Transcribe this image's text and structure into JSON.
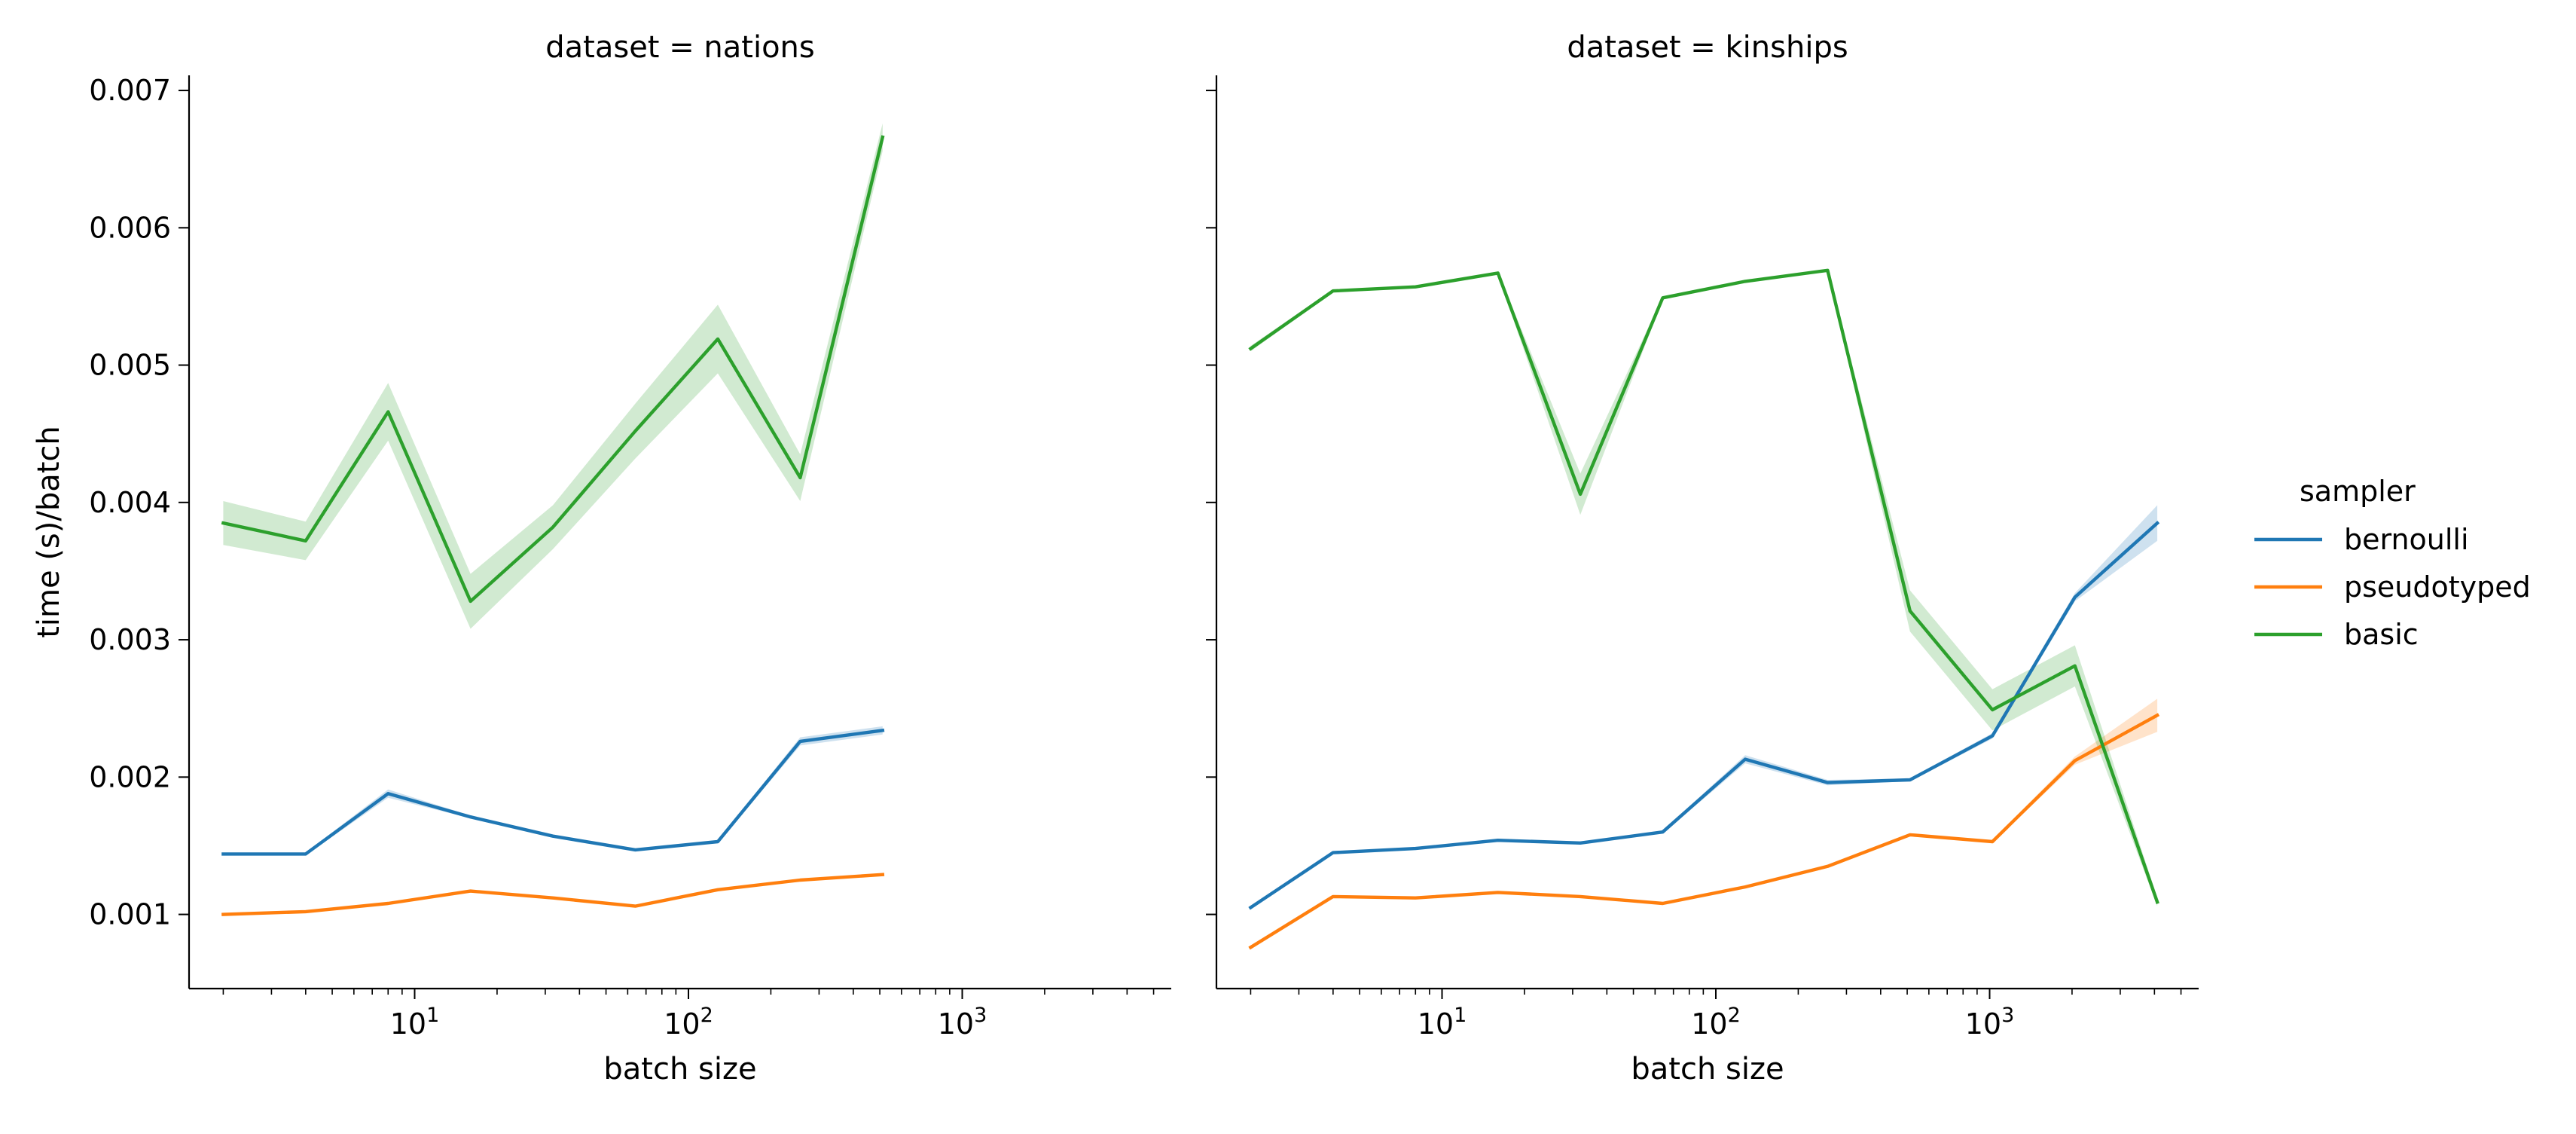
{
  "chart_data": {
    "type": "line",
    "xlabel": "batch size",
    "ylabel": "time (s)/batch",
    "xscale": "log",
    "xlim": [
      1.5,
      5800
    ],
    "ylim": [
      0.00046,
      0.00711
    ],
    "yticks": [
      0.001,
      0.002,
      0.003,
      0.004,
      0.005,
      0.006,
      0.007
    ],
    "ytick_labels": [
      "0.001",
      "0.002",
      "0.003",
      "0.004",
      "0.005",
      "0.006",
      "0.007"
    ],
    "xticks": [
      10,
      100,
      1000
    ],
    "xtick_labels": [
      {
        "base": "10",
        "exp": "1"
      },
      {
        "base": "10",
        "exp": "2"
      },
      {
        "base": "10",
        "exp": "3"
      }
    ],
    "shared_y": true,
    "grid": false,
    "legend": {
      "title": "sampler",
      "placement": "right-outside",
      "entries": [
        {
          "name": "bernoulli",
          "color": "#1f77b4"
        },
        {
          "name": "pseudotyped",
          "color": "#ff7f0e"
        },
        {
          "name": "basic",
          "color": "#2ca02c"
        }
      ]
    },
    "panels": [
      {
        "title": "dataset = nations",
        "series": [
          {
            "name": "bernoulli",
            "color": "#1f77b4",
            "x": [
              2,
              4,
              8,
              16,
              32,
              64,
              128,
              256,
              512
            ],
            "y": [
              0.00144,
              0.00144,
              0.00188,
              0.00171,
              0.00157,
              0.00147,
              0.00153,
              0.00226,
              0.00234
            ],
            "band": [
              1e-05,
              1e-05,
              3e-05,
              1e-05,
              1e-05,
              1e-05,
              1e-05,
              3e-05,
              3e-05
            ]
          },
          {
            "name": "pseudotyped",
            "color": "#ff7f0e",
            "x": [
              2,
              4,
              8,
              16,
              32,
              64,
              128,
              256,
              512
            ],
            "y": [
              0.001,
              0.00102,
              0.00108,
              0.00117,
              0.00112,
              0.00106,
              0.00118,
              0.00125,
              0.00129
            ],
            "band": [
              1e-05,
              1e-05,
              1e-05,
              1e-05,
              1e-05,
              1e-05,
              1e-05,
              1e-05,
              1e-05
            ]
          },
          {
            "name": "basic",
            "color": "#2ca02c",
            "x": [
              2,
              4,
              8,
              16,
              32,
              64,
              128,
              256,
              512
            ],
            "y": [
              0.00385,
              0.00372,
              0.00466,
              0.00328,
              0.00382,
              0.00452,
              0.00519,
              0.00418,
              0.00666
            ],
            "band": [
              0.00016,
              0.00014,
              0.00021,
              0.0002,
              0.00016,
              0.0002,
              0.00025,
              0.00017,
              0.0001
            ]
          }
        ]
      },
      {
        "title": "dataset = kinships",
        "series": [
          {
            "name": "bernoulli",
            "color": "#1f77b4",
            "x": [
              2,
              4,
              8,
              16,
              32,
              64,
              128,
              256,
              512,
              1024,
              2048,
              4096
            ],
            "y": [
              0.00105,
              0.00145,
              0.00148,
              0.00154,
              0.00152,
              0.0016,
              0.00213,
              0.00196,
              0.00198,
              0.0023,
              0.00331,
              0.00385
            ],
            "band": [
              1e-05,
              1e-05,
              1e-05,
              1e-05,
              1e-05,
              1e-05,
              3e-05,
              2e-05,
              1e-05,
              2e-05,
              3e-05,
              0.00013
            ]
          },
          {
            "name": "pseudotyped",
            "color": "#ff7f0e",
            "x": [
              2,
              4,
              8,
              16,
              32,
              64,
              128,
              256,
              512,
              1024,
              2048,
              4096
            ],
            "y": [
              0.00076,
              0.00113,
              0.00112,
              0.00116,
              0.00113,
              0.00108,
              0.0012,
              0.00135,
              0.00158,
              0.00153,
              0.00212,
              0.00245
            ],
            "band": [
              1e-05,
              1e-05,
              1e-05,
              1e-05,
              1e-05,
              1e-05,
              1e-05,
              1e-05,
              1e-05,
              1e-05,
              3e-05,
              0.00012
            ]
          },
          {
            "name": "basic",
            "color": "#2ca02c",
            "x": [
              2,
              4,
              8,
              16,
              32,
              64,
              128,
              256,
              512,
              1024,
              2048,
              4096
            ],
            "y": [
              0.00512,
              0.00554,
              0.00557,
              0.00567,
              0.00406,
              0.00549,
              0.00561,
              0.00569,
              0.00321,
              0.00249,
              0.00281,
              0.00109
            ],
            "band": [
              2e-05,
              1e-05,
              1e-05,
              1e-05,
              0.00015,
              1e-05,
              1e-05,
              1e-05,
              0.00015,
              0.00015,
              0.00015,
              3e-05
            ]
          }
        ]
      }
    ]
  }
}
